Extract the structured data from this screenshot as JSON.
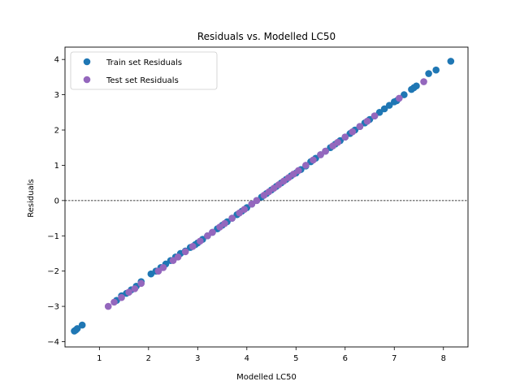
{
  "chart_data": {
    "type": "scatter",
    "title": "Residuals vs. Modelled LC50",
    "xlabel": "Modelled LC50",
    "ylabel": "Residuals",
    "xlim": [
      0.3,
      8.5
    ],
    "ylim": [
      -4.15,
      4.35
    ],
    "xticks": [
      1,
      2,
      3,
      4,
      5,
      6,
      7,
      8
    ],
    "yticks": [
      -4,
      -3,
      -2,
      -1,
      0,
      1,
      2,
      3,
      4
    ],
    "grid": false,
    "legend_position": "top-left",
    "reference_line": {
      "y": 0,
      "style": "dashed",
      "color": "#000000"
    },
    "series": [
      {
        "name": "Train set Residuals",
        "color": "#1f77b4",
        "x": [
          0.49,
          0.52,
          0.55,
          0.65,
          1.35,
          1.45,
          1.55,
          1.65,
          1.75,
          1.85,
          2.05,
          2.15,
          2.25,
          2.35,
          2.45,
          2.55,
          2.65,
          2.75,
          2.85,
          2.95,
          3.0,
          3.1,
          3.2,
          3.3,
          3.4,
          3.5,
          3.6,
          3.7,
          3.8,
          3.9,
          4.0,
          4.1,
          4.2,
          4.3,
          4.4,
          4.5,
          4.6,
          4.7,
          4.8,
          4.9,
          5.0,
          5.1,
          5.2,
          5.3,
          5.4,
          5.5,
          5.6,
          5.7,
          5.8,
          5.9,
          6.0,
          6.1,
          6.2,
          6.3,
          6.4,
          6.5,
          6.6,
          6.7,
          6.8,
          6.9,
          7.0,
          7.05,
          7.2,
          7.35,
          7.4,
          7.45,
          7.7,
          7.85,
          8.15
        ],
        "y": [
          -3.7,
          -3.67,
          -3.63,
          -3.53,
          -2.83,
          -2.7,
          -2.63,
          -2.53,
          -2.43,
          -2.3,
          -2.08,
          -2.0,
          -1.9,
          -1.8,
          -1.7,
          -1.6,
          -1.5,
          -1.43,
          -1.33,
          -1.25,
          -1.2,
          -1.1,
          -1.0,
          -0.9,
          -0.8,
          -0.7,
          -0.6,
          -0.5,
          -0.4,
          -0.3,
          -0.2,
          -0.1,
          0.0,
          0.1,
          0.2,
          0.3,
          0.4,
          0.5,
          0.6,
          0.7,
          0.78,
          0.88,
          0.98,
          1.1,
          1.2,
          1.3,
          1.4,
          1.5,
          1.6,
          1.7,
          1.8,
          1.9,
          2.0,
          2.1,
          2.2,
          2.3,
          2.4,
          2.5,
          2.6,
          2.7,
          2.8,
          2.83,
          3.0,
          3.15,
          3.2,
          3.25,
          3.6,
          3.7,
          3.95
        ]
      },
      {
        "name": "Test set Residuals",
        "color": "#9467bd",
        "x": [
          1.18,
          1.3,
          1.45,
          1.6,
          1.72,
          1.85,
          2.2,
          2.3,
          2.5,
          2.6,
          2.75,
          2.9,
          3.05,
          3.2,
          3.3,
          3.45,
          3.55,
          3.7,
          3.85,
          3.95,
          4.1,
          4.2,
          4.35,
          4.45,
          4.55,
          4.65,
          4.75,
          4.85,
          4.95,
          5.05,
          5.2,
          5.35,
          5.5,
          5.6,
          5.75,
          5.85,
          6.0,
          6.15,
          6.3,
          6.45,
          6.6,
          7.1,
          7.6
        ],
        "y": [
          -3.0,
          -2.88,
          -2.75,
          -2.6,
          -2.5,
          -2.35,
          -2.0,
          -1.9,
          -1.7,
          -1.6,
          -1.45,
          -1.3,
          -1.15,
          -1.0,
          -0.9,
          -0.75,
          -0.65,
          -0.5,
          -0.35,
          -0.25,
          -0.1,
          0.0,
          0.15,
          0.25,
          0.35,
          0.45,
          0.55,
          0.65,
          0.75,
          0.85,
          1.0,
          1.15,
          1.3,
          1.4,
          1.55,
          1.65,
          1.8,
          1.95,
          2.1,
          2.25,
          2.4,
          2.9,
          3.37
        ]
      }
    ]
  }
}
